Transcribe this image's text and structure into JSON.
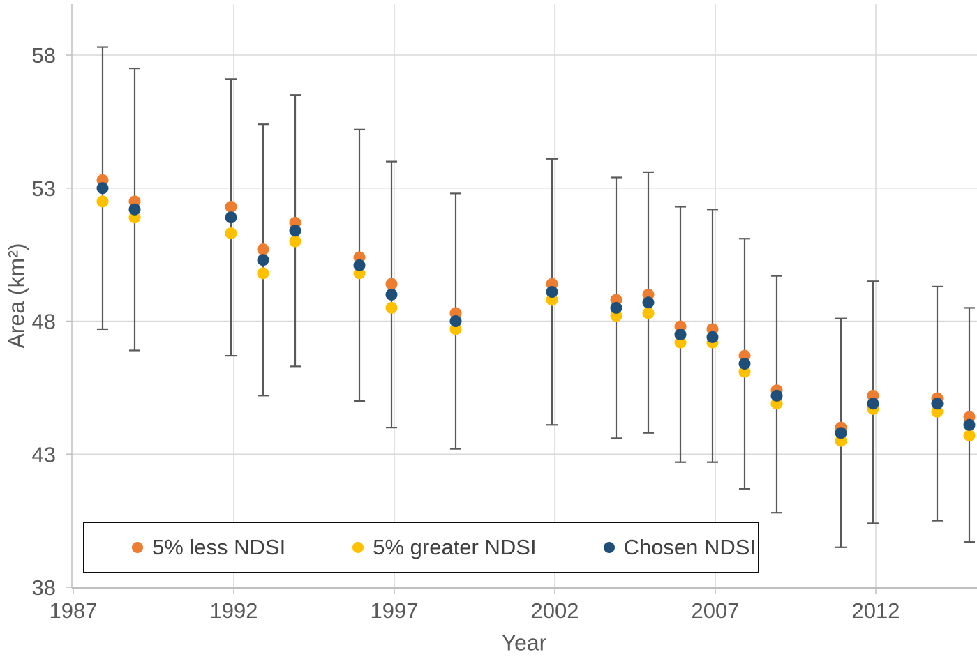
{
  "chart_data": {
    "type": "scatter",
    "title": "",
    "xlabel": "Year",
    "ylabel": "Area (km²)",
    "x_ticks": [
      1987,
      1992,
      1997,
      2002,
      2007,
      2012
    ],
    "y_ticks": [
      38,
      43,
      48,
      53,
      58
    ],
    "xlim": [
      1987,
      2015.5
    ],
    "ylim": [
      38,
      60
    ],
    "grid": true,
    "legend_position": "inside-bottom-left",
    "x": [
      1988,
      1989,
      1992,
      1993,
      1994,
      1996,
      1997,
      1999,
      2002,
      2004,
      2005,
      2006,
      2007,
      2008,
      2009,
      2011,
      2012,
      2014,
      2015
    ],
    "series": [
      {
        "name": "5% less NDSI",
        "color": "#ED7D31",
        "values": [
          53.3,
          52.5,
          52.3,
          50.7,
          51.7,
          50.4,
          49.4,
          48.3,
          49.4,
          48.8,
          49.0,
          47.8,
          47.7,
          46.7,
          45.4,
          44.0,
          45.2,
          45.1,
          44.4
        ]
      },
      {
        "name": "5% greater NDSI",
        "color": "#FFC000",
        "values": [
          52.5,
          51.9,
          51.3,
          49.8,
          51.0,
          49.8,
          48.5,
          47.7,
          48.8,
          48.2,
          48.3,
          47.2,
          47.2,
          46.1,
          44.9,
          43.5,
          44.7,
          44.6,
          43.7
        ]
      },
      {
        "name": "Chosen NDSI",
        "color": "#1F4E79",
        "values": [
          53.0,
          52.2,
          51.9,
          50.3,
          51.4,
          50.1,
          49.0,
          48.0,
          49.1,
          48.5,
          48.7,
          47.5,
          47.4,
          46.4,
          45.2,
          43.8,
          44.9,
          44.9,
          44.1
        ]
      }
    ],
    "error_bars": {
      "attached_to": "Chosen NDSI",
      "upper": [
        58.3,
        57.5,
        57.1,
        55.4,
        56.5,
        55.2,
        54.0,
        52.8,
        54.1,
        53.4,
        53.6,
        52.3,
        52.2,
        51.1,
        49.7,
        48.1,
        49.5,
        49.3,
        48.5
      ],
      "lower": [
        47.7,
        46.9,
        46.7,
        45.2,
        46.3,
        45.0,
        44.0,
        43.2,
        44.1,
        43.6,
        43.8,
        42.7,
        42.7,
        41.7,
        40.8,
        39.5,
        40.4,
        40.5,
        39.7
      ]
    },
    "colors": {
      "error_bar": "#595959",
      "gridline": "#D9D9D9",
      "axis_line": "#BFBFBF",
      "tick_label": "#595959",
      "axis_title": "#595959",
      "legend_text": "#404040",
      "legend_border": "#0D0D0D",
      "background": "#FFFFFF"
    }
  }
}
